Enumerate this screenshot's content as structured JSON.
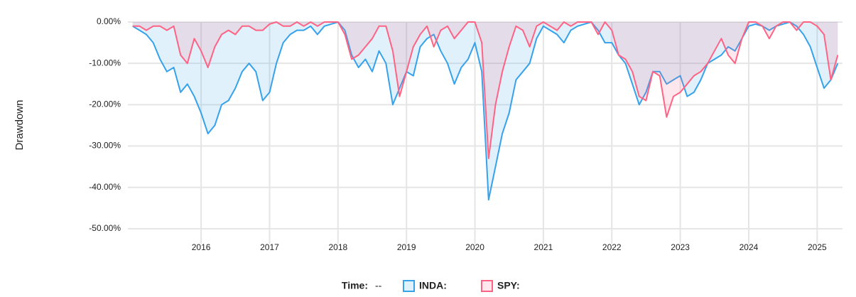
{
  "chart_data": {
    "type": "area",
    "y_label": "Drawdown",
    "hover_label": "Time:",
    "hover_value": "--",
    "x": [
      2015.0,
      2015.1,
      2015.2,
      2015.3,
      2015.4,
      2015.5,
      2015.6,
      2015.7,
      2015.8,
      2015.9,
      2016.0,
      2016.1,
      2016.2,
      2016.3,
      2016.4,
      2016.5,
      2016.6,
      2016.7,
      2016.8,
      2016.9,
      2017.0,
      2017.1,
      2017.2,
      2017.3,
      2017.4,
      2017.5,
      2017.6,
      2017.7,
      2017.8,
      2017.9,
      2018.0,
      2018.1,
      2018.2,
      2018.3,
      2018.4,
      2018.5,
      2018.6,
      2018.7,
      2018.8,
      2018.9,
      2019.0,
      2019.1,
      2019.2,
      2019.3,
      2019.4,
      2019.5,
      2019.6,
      2019.7,
      2019.8,
      2019.9,
      2020.0,
      2020.1,
      2020.2,
      2020.3,
      2020.4,
      2020.5,
      2020.6,
      2020.7,
      2020.8,
      2020.9,
      2021.0,
      2021.1,
      2021.2,
      2021.3,
      2021.4,
      2021.5,
      2021.6,
      2021.7,
      2021.8,
      2021.9,
      2022.0,
      2022.1,
      2022.2,
      2022.3,
      2022.4,
      2022.5,
      2022.6,
      2022.7,
      2022.8,
      2022.9,
      2023.0,
      2023.1,
      2023.2,
      2023.3,
      2023.4,
      2023.5,
      2023.6,
      2023.7,
      2023.8,
      2023.9,
      2024.0,
      2024.1,
      2024.2,
      2024.3,
      2024.4,
      2024.5,
      2024.6,
      2024.7,
      2024.8,
      2024.9,
      2025.0,
      2025.1,
      2025.2,
      2025.3
    ],
    "series": [
      {
        "name": "INDA:",
        "color": "#36a2eb",
        "fill": "rgba(54,162,235,0.15)",
        "values": [
          -1,
          -2,
          -3,
          -5,
          -9,
          -12,
          -11,
          -17,
          -15,
          -18,
          -22,
          -27,
          -25,
          -20,
          -19,
          -16,
          -12,
          -10,
          -12,
          -19,
          -17,
          -10,
          -5,
          -3,
          -2,
          -2,
          -1,
          -3,
          -1,
          -0.5,
          0,
          -2,
          -8,
          -11,
          -9,
          -12,
          -7,
          -10,
          -20,
          -16,
          -12,
          -13,
          -6,
          -4,
          -3,
          -7,
          -10,
          -15,
          -11,
          -9,
          -5,
          -12,
          -43,
          -35,
          -27,
          -22,
          -14,
          -12,
          -10,
          -4,
          -1,
          -2,
          -3,
          -5,
          -2,
          -1,
          -0.5,
          0,
          -2,
          -5,
          -5,
          -8,
          -10,
          -15,
          -20,
          -17,
          -12,
          -12,
          -15,
          -14,
          -13,
          -18,
          -17,
          -14,
          -10,
          -9,
          -8,
          -6,
          -7,
          -4,
          -1,
          -0.5,
          -1,
          -2,
          -1,
          -0.5,
          0,
          -1,
          -3,
          -6,
          -11,
          -16,
          -14,
          -10
        ]
      },
      {
        "name": "SPY:",
        "color": "#ff6384",
        "fill": "rgba(255,99,132,0.15)",
        "values": [
          -1,
          -1,
          -2,
          -1,
          -1,
          -2,
          -1,
          -8,
          -10,
          -4,
          -7,
          -11,
          -6,
          -3,
          -2,
          -3,
          -1,
          -1,
          -2,
          -2,
          -0.5,
          0,
          -1,
          -1,
          0,
          -1,
          0,
          -1,
          0,
          0,
          0,
          -3,
          -9,
          -8,
          -6,
          -4,
          -1,
          -1,
          -7,
          -18,
          -12,
          -6,
          -3,
          -1,
          -6,
          -2,
          -1,
          -4,
          -2,
          0,
          0,
          -5,
          -33,
          -20,
          -12,
          -6,
          -1,
          -2,
          -6,
          -1,
          0,
          -1,
          -2,
          0,
          -1,
          0,
          0,
          0,
          -3,
          0,
          -2,
          -8,
          -9,
          -12,
          -18,
          -19,
          -12,
          -13,
          -23,
          -18,
          -17,
          -15,
          -13,
          -12,
          -10,
          -7,
          -4,
          -8,
          -10,
          -4,
          0,
          0,
          -1,
          -4,
          -1,
          0,
          0,
          -2,
          0,
          0,
          -1,
          -3,
          -14,
          -8
        ]
      }
    ],
    "xlim": [
      2014.93,
      2025.37
    ],
    "xticks": [
      2016,
      2017,
      2018,
      2019,
      2020,
      2021,
      2022,
      2023,
      2024,
      2025
    ],
    "ylim": [
      -52.6,
      0
    ],
    "yticks": [
      {
        "value": 0,
        "label": "0.00%"
      },
      {
        "value": -10,
        "label": "-10.00%"
      },
      {
        "value": -20,
        "label": "-20.00%"
      },
      {
        "value": -30,
        "label": "-30.00%"
      },
      {
        "value": -40,
        "label": "-40.00%"
      },
      {
        "value": -50,
        "label": "-50.00%"
      }
    ],
    "grid": true
  }
}
